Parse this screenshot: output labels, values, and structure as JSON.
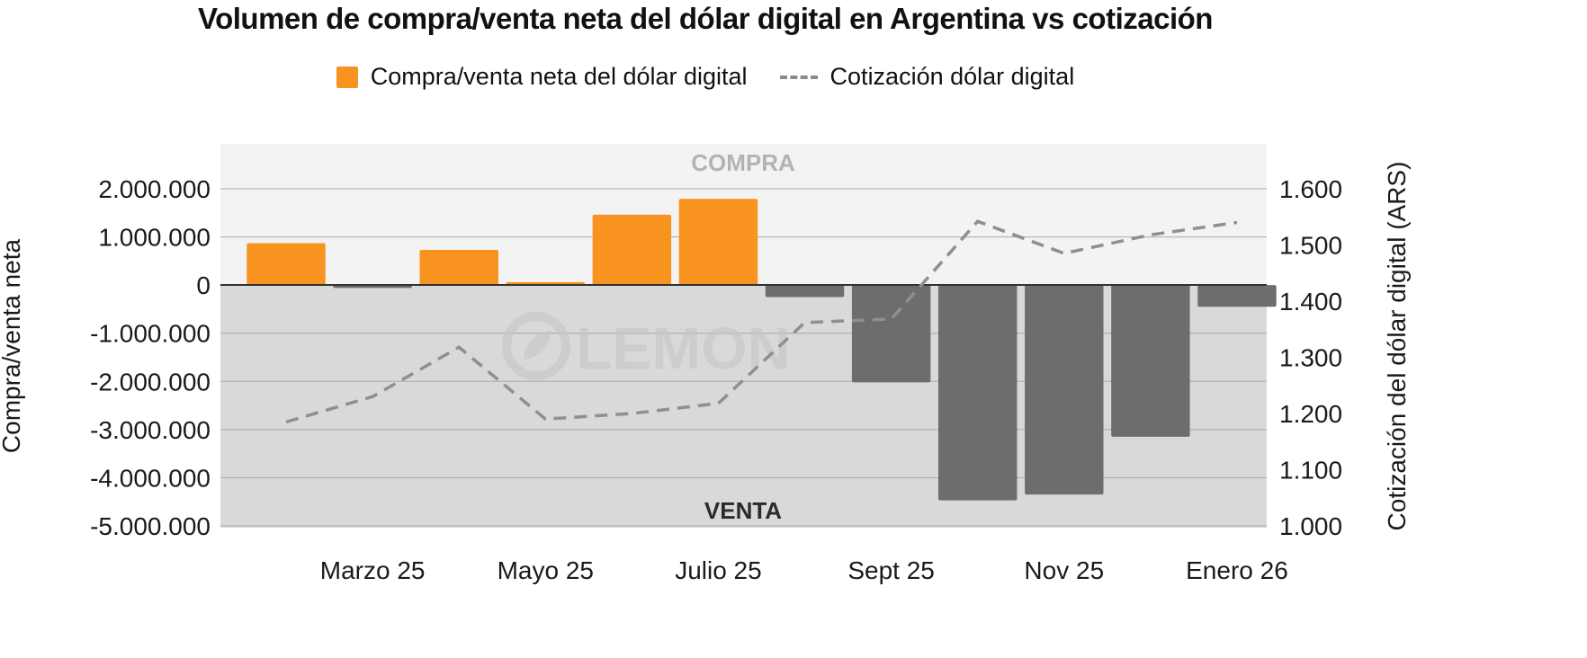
{
  "chart_data": {
    "type": "bar",
    "title": "Volumen de compra/venta neta del dólar digital en Argentina vs cotización",
    "legend": {
      "bars": "Compra/venta neta del dólar digital",
      "line": "Cotización dólar digital"
    },
    "ylabel": "Compra/venta neta",
    "y2label": "Cotización del dólar digital (ARS)",
    "ylim": [
      -5000000,
      2000000
    ],
    "y2lim": [
      1000,
      1600
    ],
    "yticks": [
      "2.000.000",
      "1.000.000",
      "0",
      "-1.000.000",
      "-2.000.000",
      "-3.000.000",
      "-4.000.000",
      "-5.000.000"
    ],
    "y2ticks": [
      "1.600",
      "1.500",
      "1.400",
      "1.300",
      "1.200",
      "1.100",
      "1.000"
    ],
    "xticks": [
      "Marzo 25",
      "Mayo 25",
      "Julio 25",
      "Sept 25",
      "Nov 25",
      "Enero 26"
    ],
    "zone_labels": {
      "top": "COMPRA",
      "bottom": "VENTA"
    },
    "watermark": "LEMON",
    "colors": {
      "positive": "#F7931E",
      "negative": "#6d6d6d",
      "line": "#8f8f8f"
    },
    "bars": [
      870000,
      -60000,
      730000,
      60000,
      1460000,
      1790000,
      -250000,
      -2020000,
      -4470000,
      -4350000,
      -3150000,
      -450000
    ],
    "line": [
      1185,
      1230,
      1318,
      1190,
      1200,
      1218,
      1362,
      1368,
      1542,
      1485,
      1518,
      1540
    ]
  }
}
